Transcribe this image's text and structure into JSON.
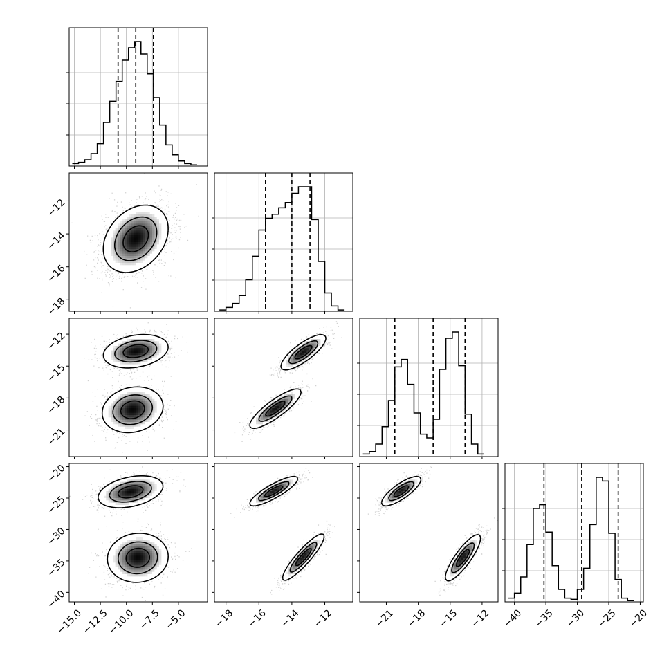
{
  "chart_data": {
    "type": "corner",
    "grid": true,
    "parameters": [
      {
        "range": [
          -15.5,
          -2.2
        ],
        "ticks": [
          -15.0,
          -12.5,
          -10.0,
          -7.5,
          -5.0
        ],
        "tick_labels": [
          "−15.0",
          "−12.5",
          "−10.0",
          "−7.5",
          "−5.0"
        ]
      },
      {
        "range": [
          -18.7,
          -10.3
        ],
        "ticks": [
          -18,
          -16,
          -14,
          -12
        ],
        "tick_labels": [
          "−18",
          "−16",
          "−14",
          "−12"
        ]
      },
      {
        "range": [
          -23.5,
          -10.5
        ],
        "ticks": [
          -21,
          -18,
          -15,
          -12
        ],
        "tick_labels": [
          "−21",
          "−18",
          "−15",
          "−12"
        ]
      },
      {
        "range": [
          -41.5,
          -19.5
        ],
        "ticks": [
          -40,
          -35,
          -30,
          -25,
          -20
        ],
        "tick_labels": [
          "−40",
          "−35",
          "−30",
          "−25",
          "−20"
        ]
      }
    ],
    "histograms": [
      {
        "param": 0,
        "bin_start": -15.2,
        "bin_width": 0.6,
        "counts": [
          2,
          3,
          5,
          10,
          18,
          35,
          52,
          68,
          85,
          95,
          100,
          90,
          74,
          55,
          33,
          17,
          9,
          4,
          2,
          1
        ],
        "quantiles": [
          -10.8,
          -9.1,
          -7.4
        ]
      },
      {
        "param": 1,
        "bin_start": -18.4,
        "bin_width": 0.4,
        "counts": [
          1,
          3,
          6,
          12,
          24,
          42,
          62,
          71,
          74,
          79,
          83,
          90,
          95,
          95,
          70,
          38,
          14,
          4,
          1
        ],
        "quantiles": [
          -15.6,
          -14.0,
          -12.9
        ]
      },
      {
        "param": 2,
        "bin_start": -23.2,
        "bin_width": 0.6,
        "counts": [
          2,
          4,
          10,
          24,
          45,
          72,
          78,
          58,
          35,
          18,
          15,
          30,
          70,
          95,
          100,
          73,
          34,
          10,
          2
        ],
        "quantiles": [
          -20.2,
          -16.6,
          -13.6
        ]
      },
      {
        "param": 3,
        "bin_start": -41.0,
        "bin_width": 1.0,
        "counts": [
          3,
          7,
          20,
          46,
          75,
          78,
          56,
          29,
          10,
          3,
          2,
          10,
          27,
          62,
          100,
          97,
          55,
          18,
          3,
          1
        ],
        "quantiles": [
          -35.3,
          -29.3,
          -23.5
        ]
      }
    ],
    "density_2d": [
      {
        "x": 0,
        "y": 1,
        "blobs": [
          {
            "mx": -9.1,
            "my": -14.3,
            "sx": 1.6,
            "sy": 1.05,
            "rho": 0.3,
            "w": 1
          }
        ]
      },
      {
        "x": 0,
        "y": 2,
        "blobs": [
          {
            "mx": -9.1,
            "my": -13.6,
            "sx": 1.6,
            "sy": 0.8,
            "rho": 0.25,
            "w": 0.5
          },
          {
            "mx": -9.4,
            "my": -19.1,
            "sx": 1.5,
            "sy": 1.1,
            "rho": 0.15,
            "w": 0.5
          }
        ]
      },
      {
        "x": 1,
        "y": 2,
        "blobs": [
          {
            "mx": -13.3,
            "my": -13.7,
            "sx": 0.7,
            "sy": 0.85,
            "rho": 0.8,
            "w": 0.5
          },
          {
            "mx": -15.0,
            "my": -19.0,
            "sx": 0.8,
            "sy": 0.95,
            "rho": 0.85,
            "w": 0.5
          }
        ]
      },
      {
        "x": 0,
        "y": 3,
        "blobs": [
          {
            "mx": -9.6,
            "my": -24.0,
            "sx": 1.6,
            "sy": 1.3,
            "rho": 0.35,
            "w": 0.5
          },
          {
            "mx": -8.9,
            "my": -34.5,
            "sx": 1.5,
            "sy": 2.0,
            "rho": 0.05,
            "w": 0.5
          }
        ]
      },
      {
        "x": 1,
        "y": 3,
        "blobs": [
          {
            "mx": -15.1,
            "my": -23.9,
            "sx": 0.75,
            "sy": 1.2,
            "rho": 0.85,
            "w": 0.5
          },
          {
            "mx": -13.3,
            "my": -34.4,
            "sx": 0.65,
            "sy": 1.9,
            "rho": 0.9,
            "w": 0.5
          }
        ]
      },
      {
        "x": 2,
        "y": 3,
        "blobs": [
          {
            "mx": -19.6,
            "my": -23.9,
            "sx": 0.95,
            "sy": 1.2,
            "rho": 0.8,
            "w": 0.5
          },
          {
            "mx": -13.8,
            "my": -34.5,
            "sx": 0.85,
            "sy": 1.9,
            "rho": 0.85,
            "w": 0.5
          }
        ]
      }
    ]
  }
}
